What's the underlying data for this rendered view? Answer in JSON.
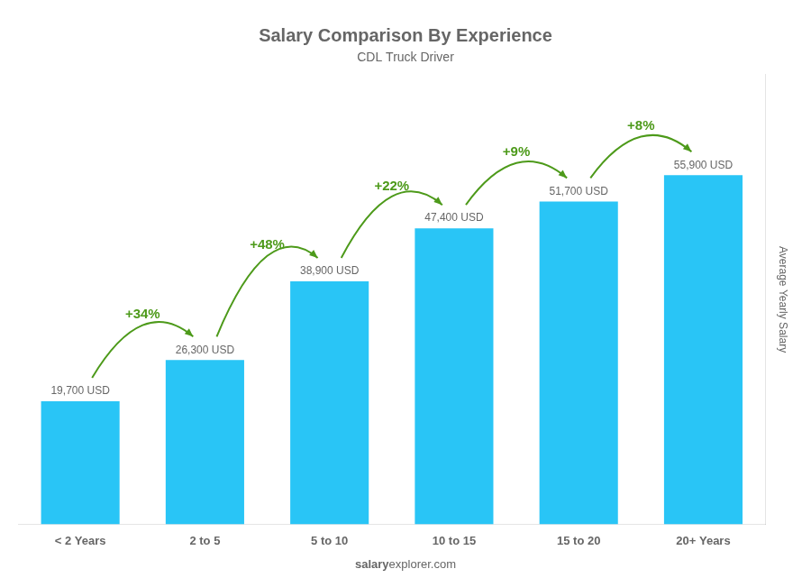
{
  "chart_data": {
    "type": "bar",
    "title": "Salary Comparison By Experience",
    "subtitle": "CDL Truck Driver",
    "ylabel": "Average Yearly Salary",
    "categories": [
      "< 2 Years",
      "2 to 5",
      "5 to 10",
      "10 to 15",
      "15 to 20",
      "20+ Years"
    ],
    "values": [
      19700,
      26300,
      38900,
      47400,
      51700,
      55900
    ],
    "value_labels": [
      "19,700 USD",
      "26,300 USD",
      "38,900 USD",
      "47,400 USD",
      "51,700 USD",
      "55,900 USD"
    ],
    "data_labels": true,
    "color": "#29C5F6",
    "ylim": [
      0,
      72000
    ],
    "grid": false,
    "tick_labels": "x",
    "annotations": [
      {
        "text": "+34%",
        "from": "< 2 Years",
        "to": "2 to 5"
      },
      {
        "text": "+48%",
        "from": "2 to 5",
        "to": "5 to 10"
      },
      {
        "text": "+22%",
        "from": "5 to 10",
        "to": "10 to 15"
      },
      {
        "text": "+9%",
        "from": "10 to 15",
        "to": "15 to 20"
      },
      {
        "text": "+8%",
        "from": "15 to 20",
        "to": "20+ Years"
      }
    ],
    "footer": [
      "salary",
      "explorer.com"
    ]
  }
}
